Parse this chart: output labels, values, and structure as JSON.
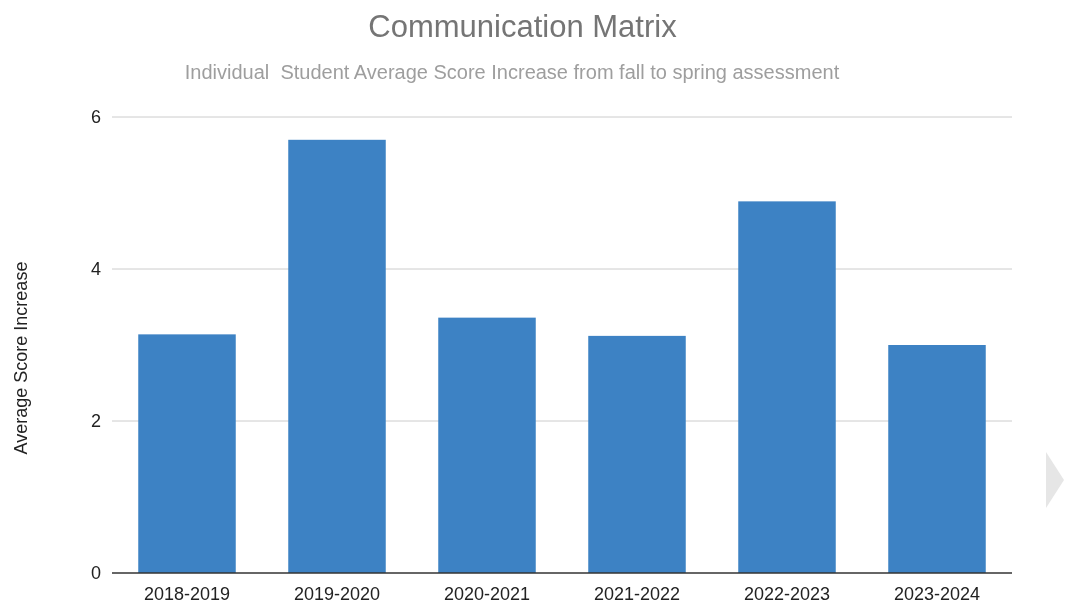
{
  "chart_data": {
    "type": "bar",
    "title": "Communication Matrix",
    "subtitle": "Individual  Student Average Score Increase from fall to spring assessment",
    "ylabel": "Average Score Increase",
    "categories": [
      "2018-2019",
      "2019-2020",
      "2020-2021",
      "2021-2022",
      "2022-2023",
      "2023-2024"
    ],
    "values": [
      3.14,
      5.7,
      3.36,
      3.12,
      4.89,
      3.0
    ],
    "color": "#3d82c4",
    "ylim": [
      0,
      6
    ],
    "yticks": [
      0,
      2,
      4,
      6
    ],
    "grid": "y"
  }
}
